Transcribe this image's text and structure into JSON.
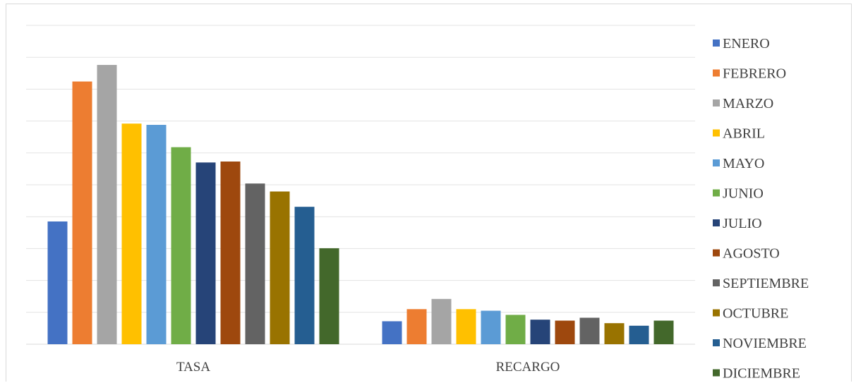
{
  "chart_data": {
    "type": "bar",
    "title": "",
    "xlabel": "",
    "ylabel": "",
    "categories": [
      "TASA",
      "RECARGO"
    ],
    "ylim": [
      0,
      100
    ],
    "grid": true,
    "legend_position": "right",
    "series": [
      {
        "name": "ENERO",
        "color": "#4472c4",
        "values": [
          38.5,
          7.2
        ]
      },
      {
        "name": "FEBRERO",
        "color": "#ed7d31",
        "values": [
          82.4,
          11.0
        ]
      },
      {
        "name": "MARZO",
        "color": "#a5a5a5",
        "values": [
          87.6,
          14.2
        ]
      },
      {
        "name": "ABRIL",
        "color": "#ffc000",
        "values": [
          69.2,
          11.0
        ]
      },
      {
        "name": "MAYO",
        "color": "#5b9bd5",
        "values": [
          68.8,
          10.5
        ]
      },
      {
        "name": "JUNIO",
        "color": "#70ad47",
        "values": [
          61.8,
          9.2
        ]
      },
      {
        "name": "JULIO",
        "color": "#264478",
        "values": [
          57.0,
          7.7
        ]
      },
      {
        "name": "AGOSTO",
        "color": "#9e480e",
        "values": [
          57.3,
          7.4
        ]
      },
      {
        "name": "SEPTIEMBRE",
        "color": "#636363",
        "values": [
          50.4,
          8.3
        ]
      },
      {
        "name": "OCTUBRE",
        "color": "#997300",
        "values": [
          47.9,
          6.6
        ]
      },
      {
        "name": "NOVIEMBRE",
        "color": "#255e91",
        "values": [
          43.1,
          5.8
        ]
      },
      {
        "name": "DICIEMBRE",
        "color": "#43682b",
        "values": [
          30.1,
          7.4
        ]
      }
    ]
  }
}
